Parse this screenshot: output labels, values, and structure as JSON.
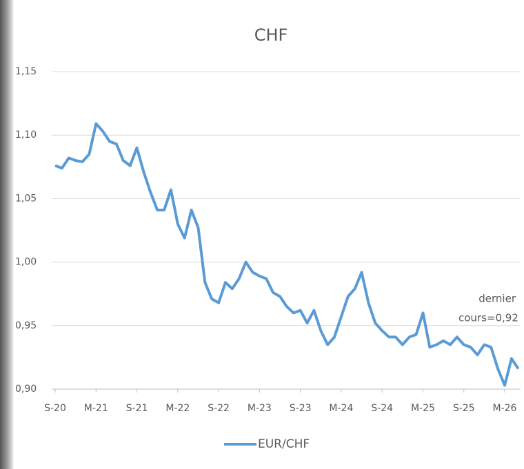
{
  "chart_data": {
    "type": "line",
    "title": "CHF",
    "categories": [
      "S-20",
      null,
      null,
      null,
      null,
      null,
      "M-21",
      null,
      null,
      null,
      null,
      null,
      "S-21",
      null,
      null,
      null,
      null,
      null,
      "M-22",
      null,
      null,
      null,
      null,
      null,
      "S-22",
      null,
      null,
      null,
      null,
      null,
      "M-23",
      null,
      null,
      null,
      null,
      null,
      "S-23",
      null,
      null,
      null,
      null,
      null,
      "M-24",
      null,
      null,
      null,
      null,
      null,
      "S-24",
      null,
      null,
      null,
      null,
      null,
      "M-25",
      null,
      null,
      null,
      null,
      null,
      "S-25",
      null,
      null,
      null,
      null,
      null,
      "M-26",
      null,
      null
    ],
    "series": [
      {
        "name": "EUR/CHF",
        "color": "#5b9bd5",
        "values": [
          1.076,
          1.074,
          1.082,
          1.08,
          1.079,
          1.085,
          1.109,
          1.103,
          1.095,
          1.093,
          1.08,
          1.076,
          1.09,
          1.071,
          1.055,
          1.041,
          1.041,
          1.057,
          1.03,
          1.019,
          1.041,
          1.027,
          0.984,
          0.971,
          0.968,
          0.984,
          0.979,
          0.987,
          1.0,
          0.992,
          0.989,
          0.987,
          0.976,
          0.973,
          0.965,
          0.96,
          0.962,
          0.952,
          0.962,
          0.946,
          0.935,
          0.941,
          0.957,
          0.973,
          0.979,
          0.992,
          0.968,
          0.952,
          0.946,
          0.941,
          0.941,
          0.935,
          0.941,
          0.943,
          0.96,
          0.933,
          0.935,
          0.938,
          0.935,
          0.941,
          0.935,
          0.933,
          0.927,
          0.935,
          0.933,
          0.916,
          0.903,
          0.924,
          0.916
        ]
      }
    ],
    "ylim": [
      0.9,
      1.15
    ],
    "yticks": [
      {
        "value": 0.9,
        "label": "0,90"
      },
      {
        "value": 0.95,
        "label": "0,95"
      },
      {
        "value": 1.0,
        "label": "1,00"
      },
      {
        "value": 1.05,
        "label": "1,05"
      },
      {
        "value": 1.1,
        "label": "1,10"
      },
      {
        "value": 1.15,
        "label": "1,15"
      }
    ],
    "grid": true,
    "annotation": [
      "dernier",
      "cours=0,92"
    ]
  }
}
